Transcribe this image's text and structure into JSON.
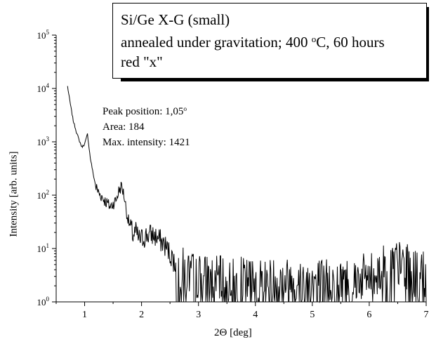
{
  "chart_data": {
    "type": "line",
    "xlabel": "2Θ [deg]",
    "ylabel": "Intensity [arb. units]",
    "xlim": [
      0.5,
      7
    ],
    "ylim": [
      1,
      100000
    ],
    "yscale": "log",
    "x_ticks": [
      "1",
      "2",
      "3",
      "4",
      "5",
      "6",
      "7"
    ],
    "y_ticks": [
      {
        "base": "10",
        "exp": "0"
      },
      {
        "base": "10",
        "exp": "1"
      },
      {
        "base": "10",
        "exp": "2"
      },
      {
        "base": "10",
        "exp": "3"
      },
      {
        "base": "10",
        "exp": "4"
      },
      {
        "base": "10",
        "exp": "5"
      }
    ],
    "legend": {
      "line1": "Si/Ge X-G (small)",
      "line2_pre": "annealed under gravitation; 400 ",
      "line2_sup": "o",
      "line2_post": "C, 60 hours",
      "line3": "red \"x\""
    },
    "annotations": {
      "peak_pre": "Peak position: 1,05",
      "peak_sup": "o",
      "area": "Area: 184",
      "max_intensity": "Max. intensity: 1421"
    },
    "series": [
      {
        "color": "#000000",
        "x": [
          0.7,
          0.75,
          0.8,
          0.85,
          0.9,
          0.95,
          1.0,
          1.05,
          1.1,
          1.15,
          1.2,
          1.25,
          1.3,
          1.35,
          1.4,
          1.45,
          1.5,
          1.55,
          1.6,
          1.65,
          1.7,
          1.75,
          1.8,
          1.85,
          1.9,
          1.95,
          2.0,
          2.1,
          2.2,
          2.3,
          2.4,
          2.5,
          2.6,
          2.7,
          2.8,
          3.0,
          3.5,
          4.0,
          4.5,
          5.0,
          5.5,
          6.0,
          6.2,
          6.4,
          6.5,
          6.6,
          6.8,
          7.0
        ],
        "y": [
          11000,
          5000,
          2500,
          1600,
          1100,
          800,
          900,
          1400,
          500,
          250,
          140,
          110,
          95,
          80,
          70,
          60,
          70,
          80,
          120,
          150,
          90,
          40,
          25,
          18,
          20,
          15,
          15,
          18,
          18,
          15,
          12,
          8,
          5,
          4,
          3.5,
          3,
          2.5,
          2.5,
          2.5,
          2.5,
          2.5,
          3,
          4,
          6,
          5,
          5,
          3.5,
          3
        ]
      }
    ]
  }
}
